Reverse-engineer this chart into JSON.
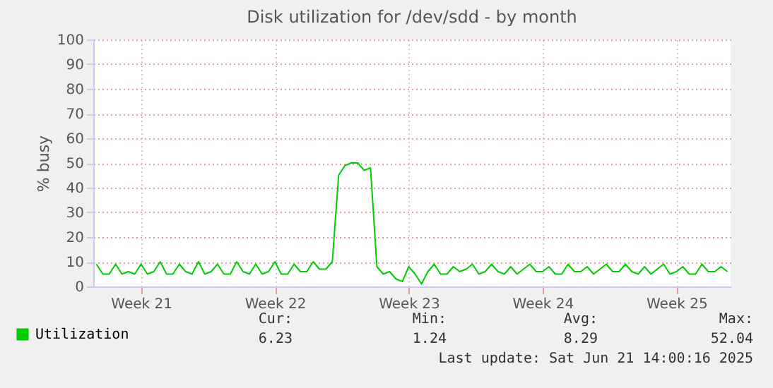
{
  "chart_data": {
    "type": "line",
    "title": "Disk utilization for /dev/sdd - by month",
    "ylabel": "% busy",
    "categories": [
      null,
      null,
      null,
      null,
      null,
      null,
      null,
      "Week 21",
      null,
      null,
      null,
      null,
      null,
      null,
      null,
      null,
      null,
      null,
      null,
      null,
      null,
      null,
      null,
      null,
      null,
      null,
      null,
      null,
      "Week 22",
      null,
      null,
      null,
      null,
      null,
      null,
      null,
      null,
      null,
      null,
      null,
      null,
      null,
      null,
      null,
      null,
      null,
      null,
      null,
      null,
      "Week 23",
      null,
      null,
      null,
      null,
      null,
      null,
      null,
      null,
      null,
      null,
      null,
      null,
      null,
      null,
      null,
      null,
      null,
      null,
      null,
      null,
      "Week 24",
      null,
      null,
      null,
      null,
      null,
      null,
      null,
      null,
      null,
      null,
      null,
      null,
      null,
      null,
      null,
      null,
      null,
      null,
      null,
      null,
      "Week 25",
      null,
      null,
      null,
      null,
      null,
      null,
      null,
      null
    ],
    "series": [
      {
        "name": "Utilization",
        "color": "#00cc00",
        "values": [
          9,
          5,
          5,
          9,
          5,
          6,
          5,
          9,
          5,
          6,
          10,
          5,
          5,
          9,
          6,
          5,
          10,
          5,
          6,
          9,
          5,
          5,
          10,
          6,
          5,
          9,
          5,
          6,
          10,
          5,
          5,
          9,
          6,
          6,
          10,
          7,
          7,
          10,
          45,
          49,
          50,
          50,
          47,
          48,
          8,
          5,
          6,
          3,
          2,
          8,
          5,
          1,
          6,
          9,
          5,
          5,
          8,
          6,
          7,
          9,
          5,
          6,
          9,
          6,
          5,
          8,
          5,
          7,
          9,
          6,
          6,
          8,
          5,
          5,
          9,
          6,
          6,
          8,
          5,
          7,
          9,
          6,
          6,
          9,
          6,
          5,
          8,
          5,
          7,
          9,
          5,
          6,
          8,
          5,
          5,
          9,
          6,
          6,
          8,
          6
        ]
      }
    ],
    "ylim": [
      0,
      100
    ],
    "yticks": [
      0,
      10,
      20,
      30,
      40,
      50,
      60,
      70,
      80,
      90,
      100
    ],
    "grid": true,
    "legend": "bottom left",
    "marker": "none",
    "line_style": "solid",
    "annotations": [
      "Cur:",
      "6.23",
      "Min:",
      "1.24",
      "Avg:",
      "8.29",
      "Max:",
      "52.04",
      "Last update: Sat Jun 21 14:00:16 2025"
    ]
  }
}
